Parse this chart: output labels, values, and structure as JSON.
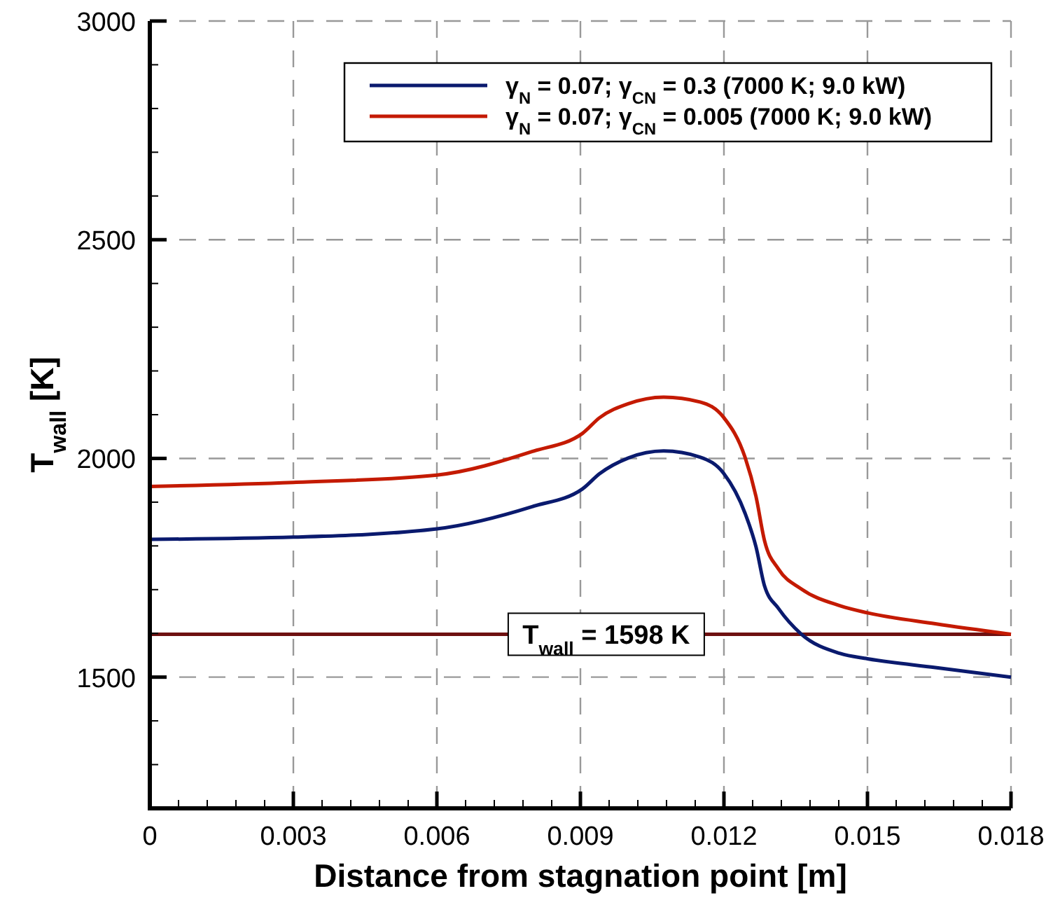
{
  "chart_data": {
    "type": "line",
    "xlabel": "Distance from stagnation point [m]",
    "ylabel": "T$_{wall}$ [K]",
    "xlim": [
      0,
      0.018
    ],
    "xticks": [
      0,
      {
        "value": 0.0006,
        "label": null
      },
      {
        "value": 0.0012,
        "label": null
      },
      {
        "value": 0.0018,
        "label": null
      },
      {
        "value": 0.0024,
        "label": null
      },
      0.003,
      {
        "value": 0.0036,
        "label": null
      },
      {
        "value": 0.0042,
        "label": null
      },
      {
        "value": 0.0048,
        "label": null
      },
      {
        "value": 0.0054,
        "label": null
      },
      0.006,
      {
        "value": 0.0066,
        "label": null
      },
      {
        "value": 0.0072,
        "label": null
      },
      {
        "value": 0.0078,
        "label": null
      },
      {
        "value": 0.0084,
        "label": null
      },
      0.009,
      {
        "value": 0.0096,
        "label": null
      },
      {
        "value": 0.0102,
        "label": null
      },
      {
        "value": 0.0108,
        "label": null
      },
      {
        "value": 0.0114,
        "label": null
      },
      0.012,
      {
        "value": 0.0126,
        "label": null
      },
      {
        "value": 0.0132,
        "label": null
      },
      {
        "value": 0.0138,
        "label": null
      },
      {
        "value": 0.0144,
        "label": null
      },
      0.015,
      {
        "value": 0.0156,
        "label": null
      },
      {
        "value": 0.0162,
        "label": null
      },
      {
        "value": 0.0168,
        "label": null
      },
      {
        "value": 0.0174,
        "label": null
      },
      0.018
    ],
    "ylim": [
      1200,
      3000
    ],
    "yticks": [
      {
        "value": 1300,
        "label": null
      },
      {
        "value": 1400,
        "label": null
      },
      1500,
      {
        "value": 1600,
        "label": null
      },
      {
        "value": 1700,
        "label": null
      },
      {
        "value": 1800,
        "label": null
      },
      {
        "value": 1900,
        "label": null
      },
      2000,
      {
        "value": 2100,
        "label": null
      },
      {
        "value": 2200,
        "label": null
      },
      {
        "value": 2300,
        "label": null
      },
      {
        "value": 2400,
        "label": null
      },
      2500,
      {
        "value": 2600,
        "label": null
      },
      {
        "value": 2700,
        "label": null
      },
      {
        "value": 2800,
        "label": null
      },
      {
        "value": 2900,
        "label": null
      },
      3000
    ],
    "grid": true,
    "legend": "top right",
    "line_style": "solid",
    "marker": "none",
    "series": [
      {
        "name": "γ$_{N}$ = 0.07; γ$_{CN}$ = 0.3 (7000 K; 9.0 kW)",
        "color": "#0a1a6e",
        "x": [
          0,
          0.003,
          0.006,
          0.008,
          0.00904,
          0.0094,
          0.01,
          0.01074,
          0.0115,
          0.012,
          0.01244,
          0.01267,
          0.01285,
          0.01314,
          0.01361,
          0.01443,
          0.015,
          0.01642,
          0.018
        ],
        "values": [
          1815,
          1820,
          1839,
          1890,
          1930,
          1965,
          2001,
          2017,
          2003,
          1965,
          1875,
          1798,
          1708,
          1657,
          1599,
          1554,
          1542,
          1522,
          1500
        ]
      },
      {
        "name": "γ$_{N}$ = 0.07; γ$_{CN}$ = 0.005 (7000 K; 9.0 kW)",
        "color": "#c41a00",
        "x": [
          0,
          0.003,
          0.006,
          0.008,
          0.00904,
          0.0094,
          0.01,
          0.01074,
          0.0115,
          0.012,
          0.01244,
          0.01267,
          0.01285,
          0.01314,
          0.01361,
          0.01443,
          0.015,
          0.01642,
          0.018
        ],
        "values": [
          1936,
          1945,
          1962,
          2016,
          2057,
          2093,
          2125,
          2140,
          2129,
          2093,
          2003,
          1913,
          1811,
          1747,
          1702,
          1663,
          1647,
          1622,
          1598
        ]
      }
    ],
    "ref_lines": [
      {
        "axis": "y",
        "value": 1598,
        "label": "T$_{wall}$ = 1598 K",
        "color": "#6e1010"
      }
    ]
  }
}
